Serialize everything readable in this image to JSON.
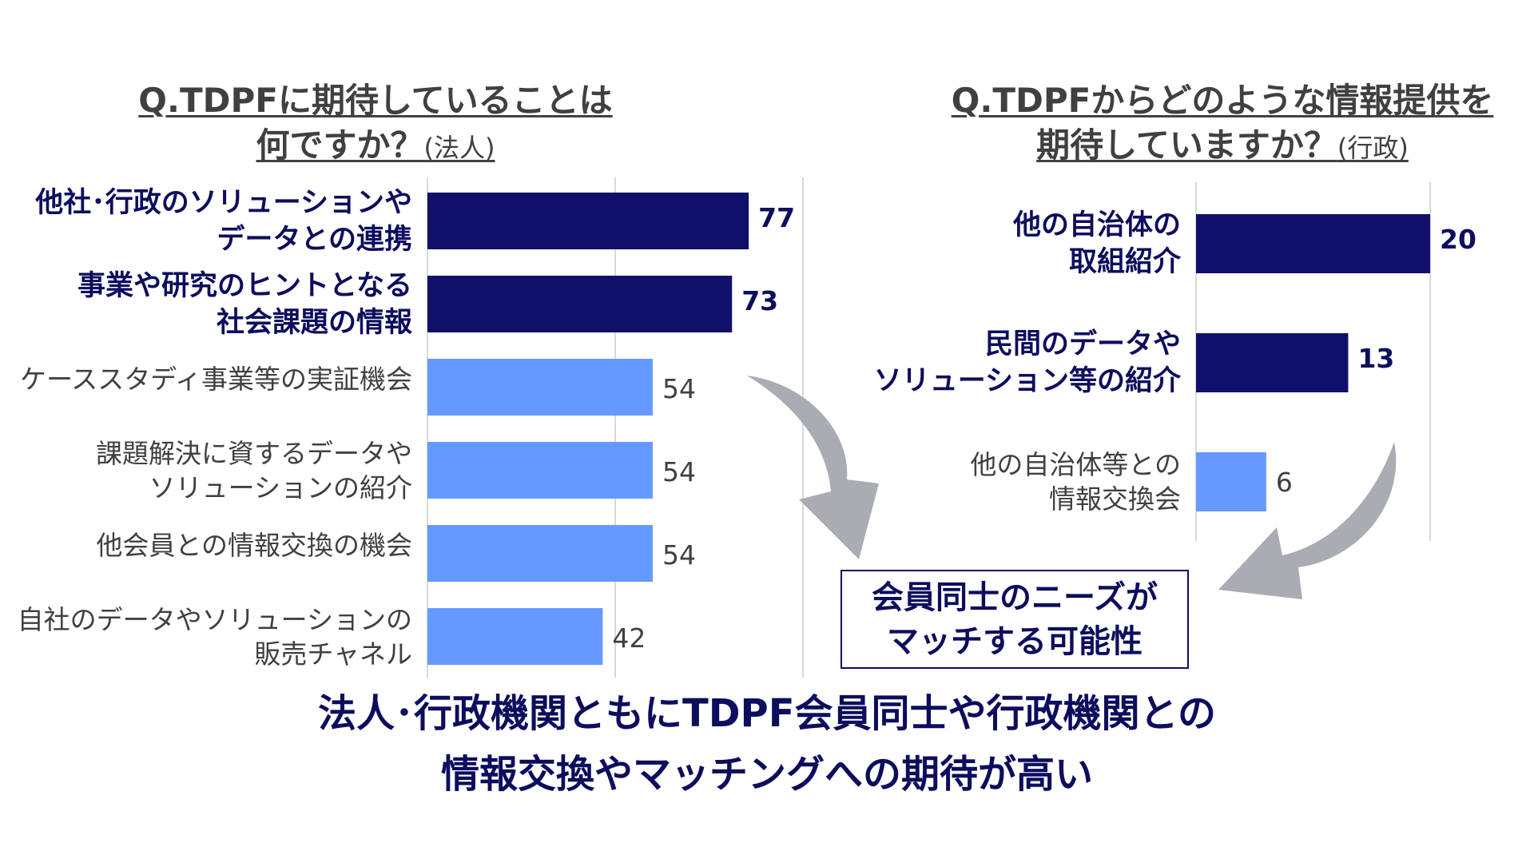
{
  "colors": {
    "highlight_bar": "#10106b",
    "normal_bar": "#6699ff",
    "highlight_text": "#0d0d5e",
    "normal_text": "#404040",
    "grid": "#d9d9d9",
    "arrow": "#a9adb3"
  },
  "left_title": {
    "line1": "Q.TDPFに期待していることは",
    "line2": "何ですか？",
    "suffix": "(法人)"
  },
  "right_title": {
    "line1": "Q.TDPFからどのような情報提供を",
    "line2": "期待していますか？",
    "suffix": "(行政)"
  },
  "callout": {
    "line1": "会員同士のニーズが",
    "line2": "マッチする可能性"
  },
  "conclusion": {
    "line1": "法人･行政機関ともにTDPF会員同士や行政機関との",
    "line2": "情報交換やマッチングへの期待が高い"
  },
  "chart_data": [
    {
      "type": "bar",
      "orientation": "horizontal",
      "categories": [
        "他社･行政のソリューションや\nデータとの連携",
        "事業や研究のヒントとなる\n社会課題の情報",
        "ケーススタディ事業等の実証機会",
        "課題解決に資するデータや\nソリューションの紹介",
        "他会員との情報交換の機会",
        "自社のデータやソリューションの\n販売チャネル"
      ],
      "values": [
        77,
        73,
        54,
        54,
        54,
        42
      ],
      "highlighted": [
        true,
        true,
        false,
        false,
        false,
        false
      ],
      "xlim": [
        0,
        90
      ],
      "grid": true,
      "title": "Q.TDPFに期待していることは何ですか？(法人)"
    },
    {
      "type": "bar",
      "orientation": "horizontal",
      "categories": [
        "他の自治体の\n取組紹介",
        "民間のデータや\nソリューション等の紹介",
        "他の自治体等との\n情報交換会"
      ],
      "values": [
        20,
        13,
        6
      ],
      "highlighted": [
        true,
        true,
        false
      ],
      "xlim": [
        0,
        20
      ],
      "grid": true,
      "title": "Q.TDPFからどのような情報提供を期待していますか？(行政)"
    }
  ]
}
